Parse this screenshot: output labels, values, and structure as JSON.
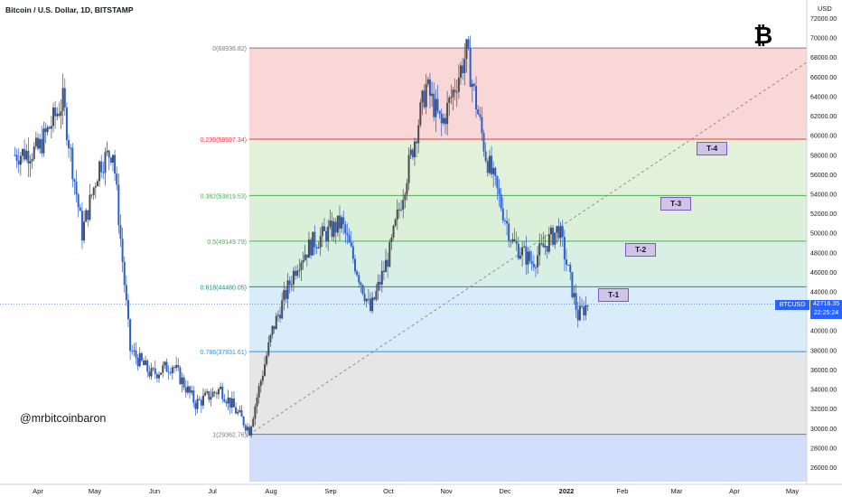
{
  "header": {
    "title": "Bitcoin / U.S. Dollar, 1D, BITSTAMP",
    "currency": "USD"
  },
  "watermark": "@mrbitcoinbaron",
  "logo_icon": "bitcoin-icon",
  "current_price": {
    "symbol": "BTCUSD",
    "price": "42716.35",
    "countdown": "22:25:24"
  },
  "chart_data": {
    "type": "candlestick",
    "y_axis": {
      "range": [
        25000,
        74000
      ],
      "ticks": [
        "72000.00",
        "70000.00",
        "68000.00",
        "66000.00",
        "64000.00",
        "62000.00",
        "60000.00",
        "58000.00",
        "56000.00",
        "54000.00",
        "52000.00",
        "50000.00",
        "48000.00",
        "46000.00",
        "44000.00",
        "42000.00",
        "40000.00",
        "38000.00",
        "36000.00",
        "34000.00",
        "32000.00",
        "30000.00",
        "28000.00",
        "26000.00"
      ]
    },
    "x_axis": {
      "labels": [
        "Apr",
        "May",
        "Jun",
        "Jul",
        "Aug",
        "Sep",
        "Oct",
        "Nov",
        "Dec",
        "2022",
        "Feb",
        "Mar",
        "Apr",
        "May"
      ]
    },
    "price_path": [
      [
        "Mar 20",
        58000
      ],
      [
        "Apr 1",
        58500
      ],
      [
        "Apr 14",
        63500
      ],
      [
        "Apr 24",
        50000
      ],
      [
        "May 3",
        57000
      ],
      [
        "May 10",
        58500
      ],
      [
        "May 19",
        38000
      ],
      [
        "May 30",
        35500
      ],
      [
        "Jun 10",
        36500
      ],
      [
        "Jun 22",
        32500
      ],
      [
        "Jul 5",
        34000
      ],
      [
        "Jul 20",
        29800
      ],
      [
        "Aug 1",
        40000
      ],
      [
        "Aug 14",
        47000
      ],
      [
        "Aug 22",
        49000
      ],
      [
        "Sep 6",
        51000
      ],
      [
        "Sep 21",
        42000
      ],
      [
        "Oct 1",
        48000
      ],
      [
        "Oct 20",
        65000
      ],
      [
        "Oct 28",
        61000
      ],
      [
        "Nov 10",
        68500
      ],
      [
        "Nov 20",
        58000
      ],
      [
        "Dec 4",
        49000
      ],
      [
        "Dec 14",
        47000
      ],
      [
        "Dec 28",
        50500
      ],
      [
        "Jan 7",
        41500
      ],
      [
        "Jan 12",
        42716
      ]
    ],
    "fib_levels": [
      {
        "ratio": "0",
        "price": 68936.82,
        "label": "0(68936.82)",
        "color": "#787b86"
      },
      {
        "ratio": "0.236",
        "price": 59597.34,
        "label": "0.236(59597.34)",
        "color": "#f23645"
      },
      {
        "ratio": "0.382",
        "price": 53819.53,
        "label": "0.382(53819.53)",
        "color": "#4caf50"
      },
      {
        "ratio": "0.5",
        "price": 49149.79,
        "label": "0.5(49149.79)",
        "color": "#4caf50"
      },
      {
        "ratio": "0.618",
        "price": 44480.05,
        "label": "0.618(44480.05)",
        "color": "#089981"
      },
      {
        "ratio": "0.786",
        "price": 37831.61,
        "label": "0.786(37831.61)",
        "color": "#2196f3"
      },
      {
        "ratio": "1",
        "price": 29362.76,
        "label": "1(29362.76)",
        "color": "#787b86"
      }
    ],
    "targets": [
      {
        "label": "T-1",
        "price": 43800,
        "date": "Jan 14"
      },
      {
        "label": "T-2",
        "price": 48200,
        "date": "Feb 1"
      },
      {
        "label": "T-3",
        "price": 53300,
        "date": "Mar 1"
      },
      {
        "label": "T-4",
        "price": 57900,
        "date": "Mar 20"
      }
    ],
    "trendline": {
      "from": [
        "Jul 20",
        29362.76
      ],
      "to": [
        "May 10",
        68000
      ]
    },
    "colors": {
      "up": "#4b4b4b",
      "down": "#2a5fd1",
      "zone_top": "#f8d7d6",
      "zone_236": "#e2f1da",
      "zone_382": "#dcefd9",
      "zone_05": "#d8efe6",
      "zone_618": "#d9ecfa",
      "zone_786": "#e6e6e6",
      "zone_below": "#d3defa"
    }
  }
}
